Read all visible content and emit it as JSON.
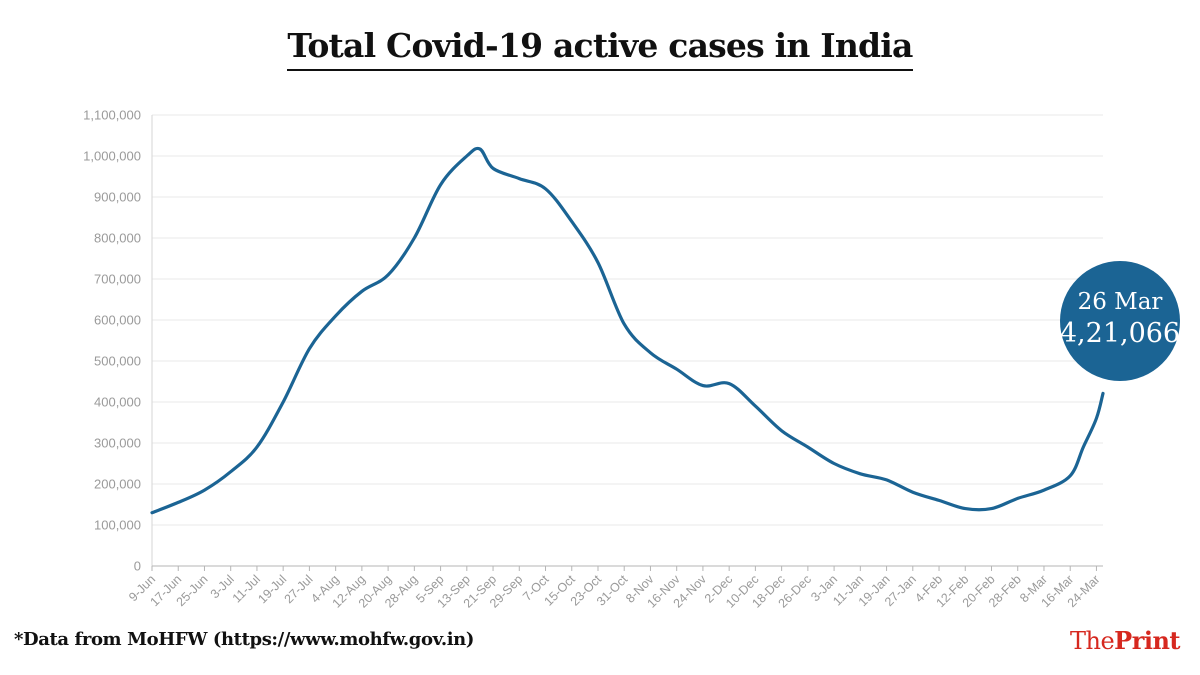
{
  "title": "Total Covid-19 active cases in India",
  "footnote": "*Data from MoHFW (https://www.mohfw.gov.in)",
  "logo": {
    "part1": "The",
    "part2": "Print",
    "color": "#d6281f"
  },
  "callout": {
    "date": "26 Mar",
    "value": "4,21,066",
    "color": "#1b6494"
  },
  "chart_data": {
    "type": "line",
    "title": "Total Covid-19 active cases in India",
    "xlabel": "",
    "ylabel": "",
    "ylim": [
      0,
      1100000
    ],
    "grid": true,
    "line_color": "#1b6494",
    "yticks": [
      0,
      100000,
      200000,
      300000,
      400000,
      500000,
      600000,
      700000,
      800000,
      900000,
      1000000,
      1100000
    ],
    "ytick_labels": [
      "0",
      "100,000",
      "200,000",
      "300,000",
      "400,000",
      "500,000",
      "600,000",
      "700,000",
      "800,000",
      "900,000",
      "1,000,000",
      "1,100,000"
    ],
    "xtick_labels": [
      "9-Jun",
      "17-Jun",
      "25-Jun",
      "3-Jul",
      "11-Jul",
      "19-Jul",
      "27-Jul",
      "4-Aug",
      "12-Aug",
      "20-Aug",
      "28-Aug",
      "5-Sep",
      "13-Sep",
      "21-Sep",
      "29-Sep",
      "7-Oct",
      "15-Oct",
      "23-Oct",
      "31-Oct",
      "8-Nov",
      "16-Nov",
      "24-Nov",
      "2-Dec",
      "10-Dec",
      "18-Dec",
      "26-Dec",
      "3-Jan",
      "11-Jan",
      "19-Jan",
      "27-Jan",
      "4-Feb",
      "12-Feb",
      "20-Feb",
      "28-Feb",
      "8-Mar",
      "16-Mar",
      "24-Mar"
    ],
    "x": [
      "9-Jun",
      "17-Jun",
      "25-Jun",
      "3-Jul",
      "11-Jul",
      "19-Jul",
      "27-Jul",
      "4-Aug",
      "12-Aug",
      "20-Aug",
      "28-Aug",
      "5-Sep",
      "13-Sep",
      "17-Sep",
      "21-Sep",
      "29-Sep",
      "7-Oct",
      "15-Oct",
      "23-Oct",
      "31-Oct",
      "8-Nov",
      "16-Nov",
      "24-Nov",
      "2-Dec",
      "10-Dec",
      "18-Dec",
      "26-Dec",
      "3-Jan",
      "11-Jan",
      "19-Jan",
      "27-Jan",
      "4-Feb",
      "12-Feb",
      "20-Feb",
      "28-Feb",
      "8-Mar",
      "16-Mar",
      "20-Mar",
      "24-Mar",
      "26-Mar"
    ],
    "series": [
      {
        "values": [
          130000,
          155000,
          185000,
          230000,
          290000,
          400000,
          530000,
          610000,
          670000,
          710000,
          800000,
          930000,
          1000000,
          1017000,
          970000,
          945000,
          920000,
          840000,
          740000,
          590000,
          520000,
          480000,
          440000,
          445000,
          390000,
          330000,
          290000,
          250000,
          225000,
          210000,
          180000,
          160000,
          140000,
          140000,
          165000,
          185000,
          220000,
          290000,
          360000,
          421066
        ]
      }
    ]
  }
}
